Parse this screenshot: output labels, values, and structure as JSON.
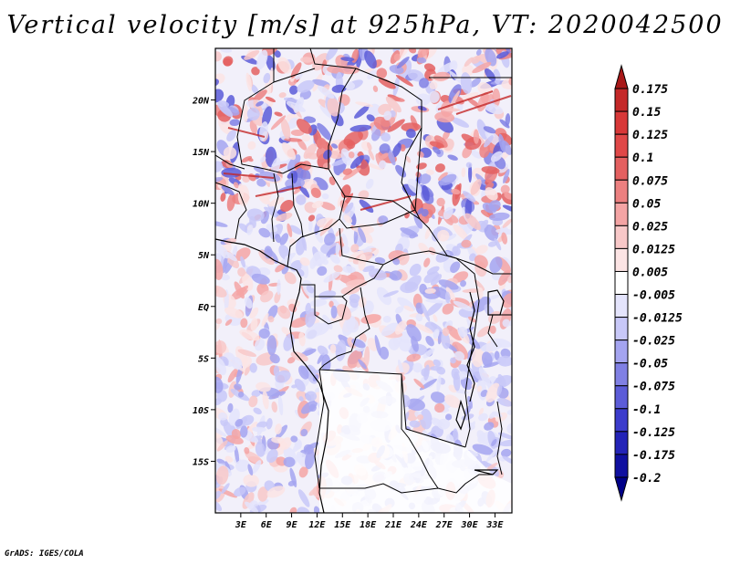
{
  "title": "Vertical velocity [m/s] at 925hPa, VT: 2020042500",
  "credit": "GrADS: IGES/COLA",
  "map": {
    "lon_range": [
      0,
      35
    ],
    "lat_range": [
      -20,
      25
    ],
    "x_ticks": [
      "3E",
      "6E",
      "9E",
      "12E",
      "15E",
      "18E",
      "21E",
      "24E",
      "27E",
      "30E",
      "33E"
    ],
    "y_ticks": [
      "20N",
      "15N",
      "10N",
      "5N",
      "EQ",
      "5S",
      "10S",
      "15S"
    ]
  },
  "colorbar": {
    "labels": [
      "0.175",
      "0.15",
      "0.125",
      "0.1",
      "0.075",
      "0.05",
      "0.025",
      "0.0125",
      "0.005",
      "-0.005",
      "-0.0125",
      "-0.025",
      "-0.05",
      "-0.075",
      "-0.1",
      "-0.125",
      "-0.175",
      "-0.2"
    ],
    "colors": [
      "#a81818",
      "#c42828",
      "#d83838",
      "#e04848",
      "#e46060",
      "#ec8080",
      "#f4a4a4",
      "#f8c8c8",
      "#fce4e4",
      "#ffffff",
      "#e4e4fc",
      "#c8c8f8",
      "#a4a4f0",
      "#8080e4",
      "#5c5cd8",
      "#3c3ccc",
      "#2424b8",
      "#1010a0",
      "#000088"
    ]
  }
}
